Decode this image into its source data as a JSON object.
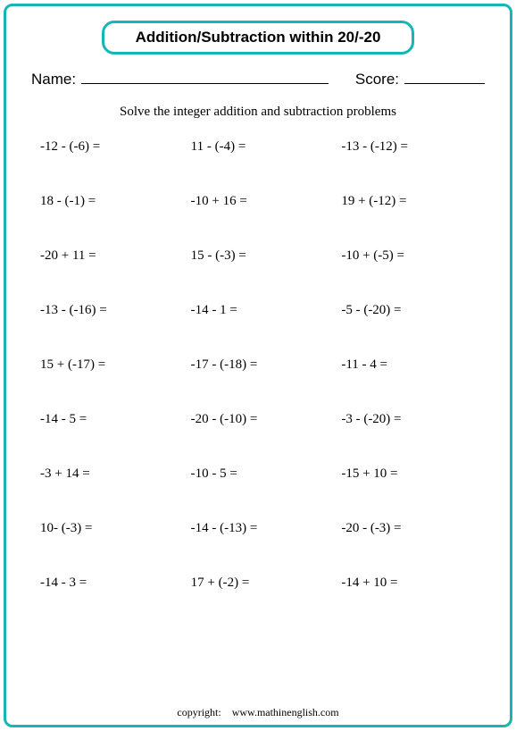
{
  "title": "Addition/Subtraction within 20/-20",
  "nameLabel": "Name:",
  "scoreLabel": "Score:",
  "instruction": "Solve the integer addition and subtraction problems",
  "problems": [
    [
      "-12 - (-6)  =",
      "11 - (-4)  =",
      "-13 - (-12)  ="
    ],
    [
      "18 - (-1)  =",
      "-10 + 16  =",
      "19 + (-12)  ="
    ],
    [
      "-20 + 11  =",
      "15 - (-3)  =",
      "-10 + (-5)  ="
    ],
    [
      "-13 - (-16)  =",
      "-14 - 1  =",
      "-5 - (-20)  ="
    ],
    [
      "15 + (-17)  =",
      "-17 - (-18)  =",
      "-11 - 4  ="
    ],
    [
      "-14 - 5  =",
      "-20 - (-10)  =",
      "-3 - (-20)  ="
    ],
    [
      "-3 + 14  =",
      "-10 - 5  =",
      "-15 + 10  ="
    ],
    [
      "10- (-3)  =",
      "-14 - (-13)  =",
      "-20 - (-3)  ="
    ],
    [
      "-14 - 3  =",
      "17 + (-2)  =",
      "-14 + 10  ="
    ]
  ],
  "copyrightLabel": "copyright:",
  "copyrightSite": "www.mathinenglish.com",
  "colors": {
    "border": "#17b6b6",
    "background": "#ffffff",
    "text": "#000000"
  }
}
